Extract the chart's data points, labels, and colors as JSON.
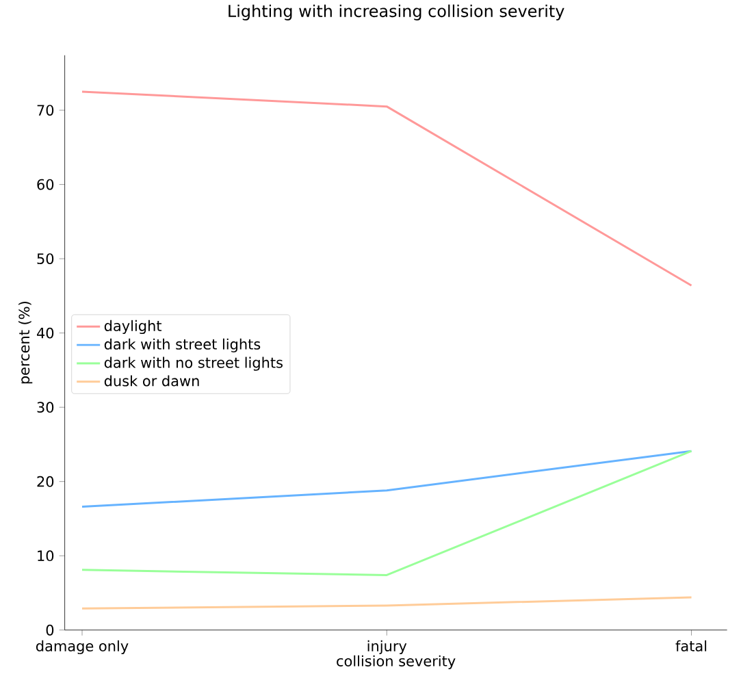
{
  "chart_data": {
    "type": "line",
    "title": "Lighting with increasing collision severity",
    "xlabel": "collision severity",
    "ylabel": "percent (%)",
    "categories": [
      "damage only",
      "injury",
      "fatal"
    ],
    "series": [
      {
        "name": "daylight",
        "color": "#ff9999",
        "values": [
          72.5,
          70.5,
          46.4
        ]
      },
      {
        "name": "dark with street lights",
        "color": "#66b3ff",
        "values": [
          16.6,
          18.8,
          24.1
        ]
      },
      {
        "name": "dark with no street lights",
        "color": "#99ff99",
        "values": [
          8.1,
          7.4,
          24.1
        ]
      },
      {
        "name": "dusk or dawn",
        "color": "#ffcc99",
        "values": [
          2.9,
          3.3,
          4.4
        ]
      }
    ],
    "ylim": [
      0,
      77.4
    ],
    "yticks": [
      0,
      10,
      20,
      30,
      40,
      50,
      60,
      70
    ],
    "legend": "left",
    "grid": false,
    "marker": "none",
    "line_style": "solid"
  }
}
